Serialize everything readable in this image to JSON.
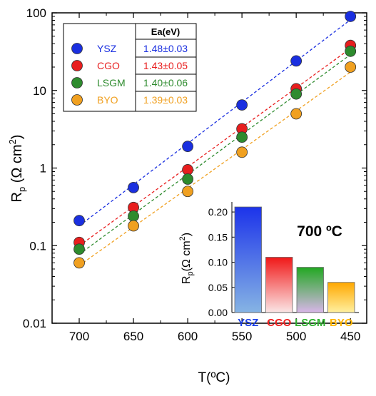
{
  "chart_data": [
    {
      "type": "scatter",
      "title": "",
      "xlabel": "T(ºC)",
      "ylabel": {
        "main": "R",
        "sub": "p",
        "unit_open": " (Ω cm",
        "unit_sup": "2",
        "unit_close": ")"
      },
      "x": [
        700,
        650,
        600,
        550,
        500,
        450
      ],
      "x_ticks": [
        "700",
        "650",
        "600",
        "550",
        "500",
        "450"
      ],
      "xlim": [
        725,
        435
      ],
      "y_scale": "log",
      "ylim": [
        0.01,
        100
      ],
      "y_ticks": [
        "0.01",
        "0.1",
        "1",
        "10",
        "100"
      ],
      "fit_lines": "dashed",
      "legend": {
        "placement": "top-left",
        "header": "Ea(eV)"
      },
      "series": [
        {
          "name": "YSZ",
          "ea": "1.48±0.03",
          "color": "#1a2fe0",
          "values": [
            0.21,
            0.56,
            1.9,
            6.5,
            24,
            90
          ]
        },
        {
          "name": "CGO",
          "ea": "1.43±0.05",
          "color": "#e81e1e",
          "values": [
            0.11,
            0.31,
            0.95,
            3.2,
            10.5,
            38
          ]
        },
        {
          "name": "LSGM",
          "ea": "1.40±0.06",
          "color": "#2e8b2e",
          "values": [
            0.09,
            0.24,
            0.72,
            2.5,
            9.0,
            32
          ]
        },
        {
          "name": "BYO",
          "ea": "1.39±0.03",
          "color": "#f0a020",
          "values": [
            0.06,
            0.18,
            0.5,
            1.6,
            5.0,
            20
          ]
        }
      ]
    },
    {
      "type": "bar",
      "title": "700 ºC",
      "categories": [
        "YSZ",
        "CGO",
        "LSGM",
        "BYO"
      ],
      "values": [
        0.21,
        0.11,
        0.09,
        0.06
      ],
      "colors": [
        "#1a3de8",
        "#f01e1e",
        "#2fb02f",
        "#ffb400"
      ],
      "ylim": [
        0,
        0.22
      ],
      "y_ticks": [
        "0.00",
        "0.05",
        "0.10",
        "0.15",
        "0.20"
      ],
      "ylabel": {
        "main": "R",
        "sub": "p",
        "unit_open": "(Ω cm",
        "unit_sup": "2",
        "unit_close": ")"
      }
    }
  ]
}
